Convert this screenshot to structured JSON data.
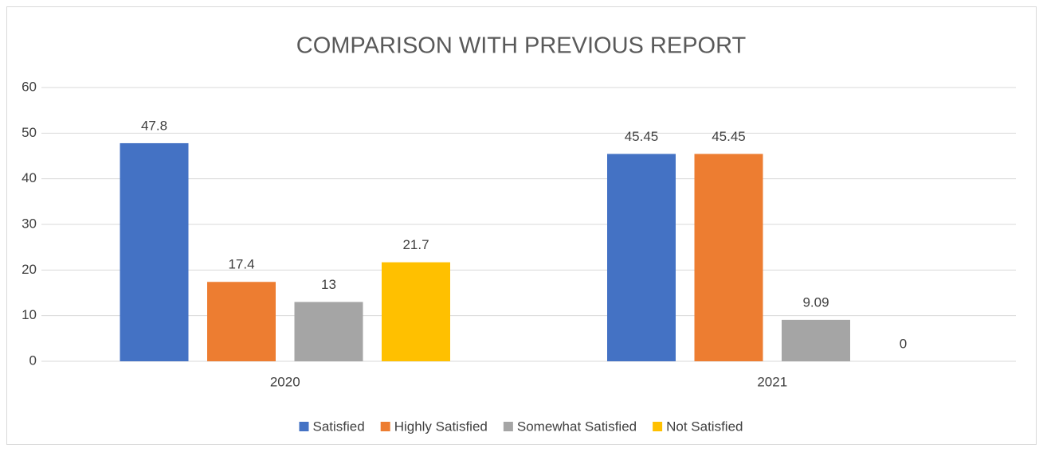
{
  "chart_data": {
    "type": "bar",
    "title": "COMPARISON WITH PREVIOUS REPORT",
    "categories": [
      "2020",
      "2021"
    ],
    "series": [
      {
        "name": "Satisfied",
        "color": "#4472c4",
        "values": [
          47.8,
          45.45
        ]
      },
      {
        "name": "Highly Satisfied",
        "color": "#ed7d31",
        "values": [
          17.4,
          45.45
        ]
      },
      {
        "name": "Somewhat Satisfied",
        "color": "#a5a5a5",
        "values": [
          13,
          9.09
        ]
      },
      {
        "name": "Not Satisfied",
        "color": "#ffc000",
        "values": [
          21.7,
          0
        ]
      }
    ],
    "ylim": [
      0,
      60
    ],
    "yticks": [
      0,
      10,
      20,
      30,
      40,
      50,
      60
    ],
    "grid": true,
    "legend": "bottom"
  }
}
